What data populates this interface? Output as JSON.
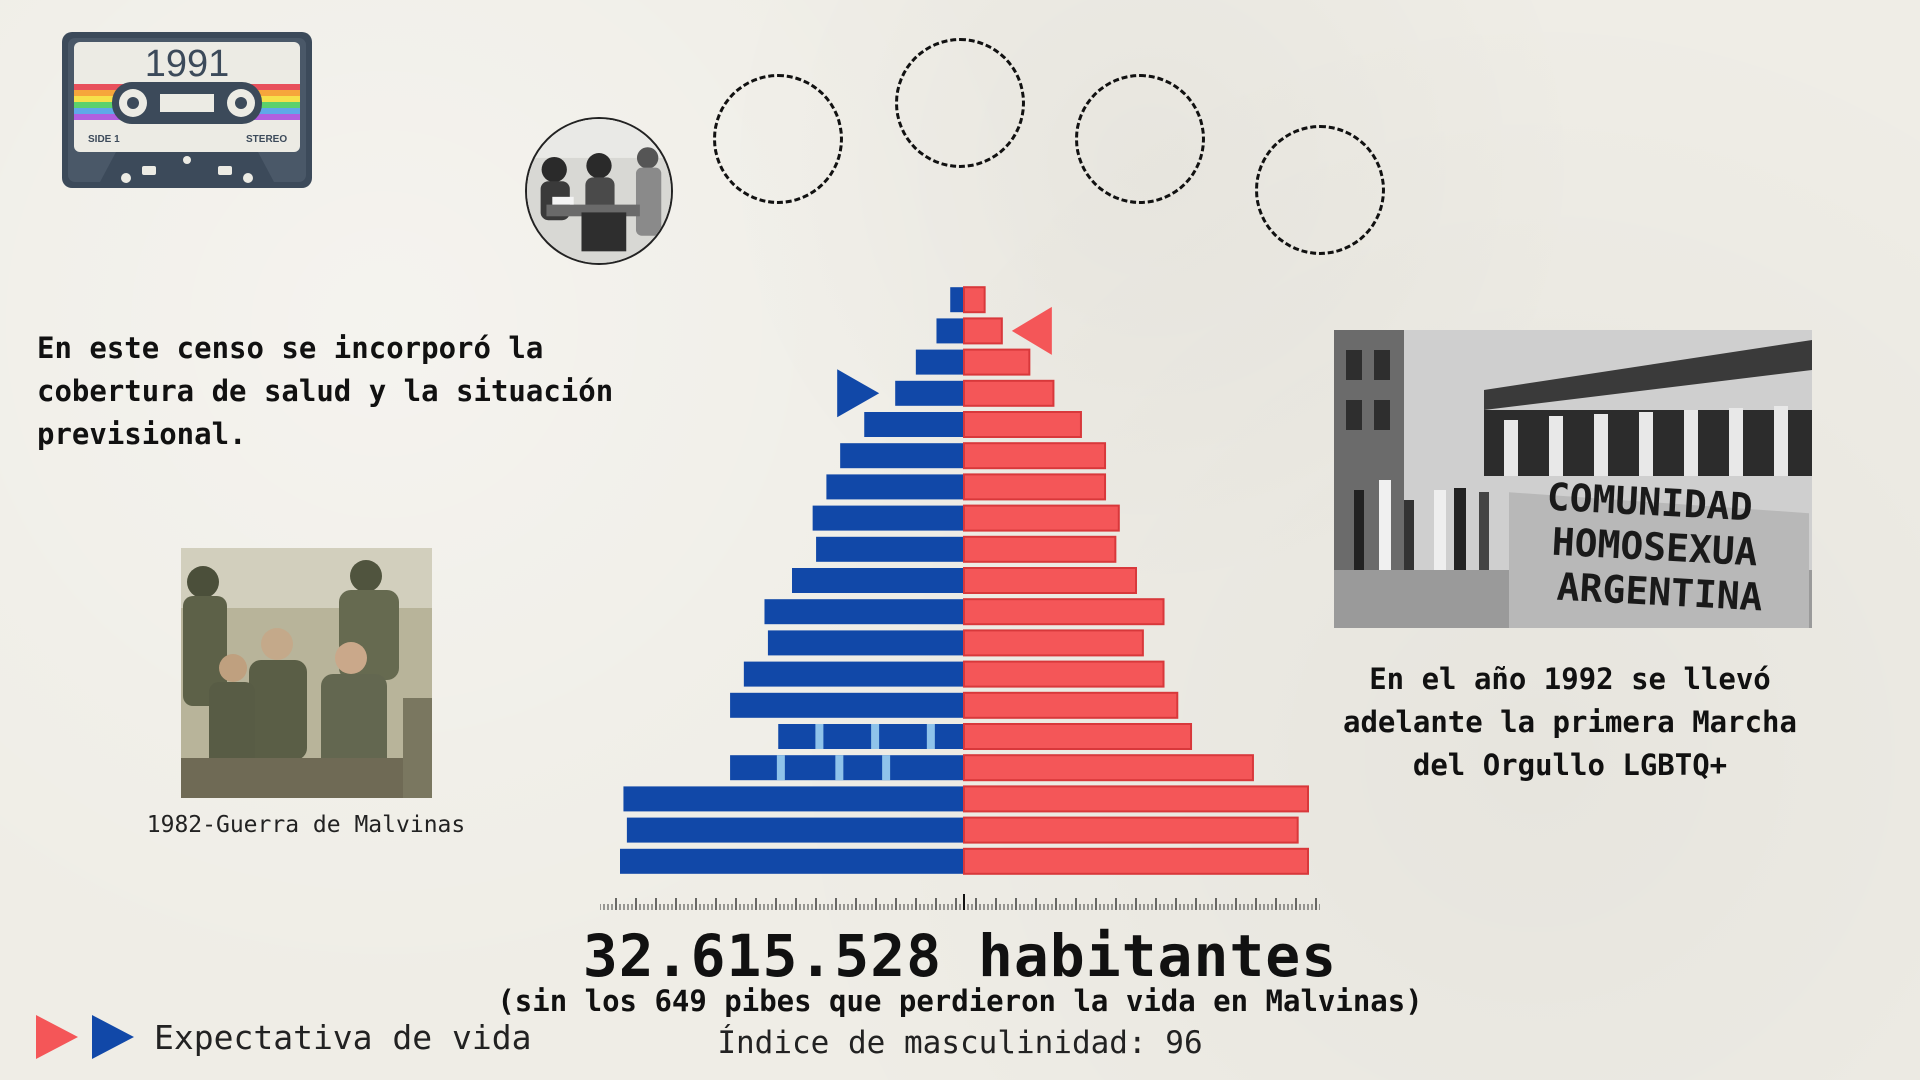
{
  "cassette": {
    "year": "1991",
    "side_label": "SIDE 1",
    "stereo_label": "STEREO"
  },
  "notes": {
    "census": "En este censo se incorporó la\ncobertura de salud y la situación\nprevisional.",
    "march": "En el año 1992 se llevó\nadelante la primera Marcha\ndel Orgullo LGBTQ+"
  },
  "captions": {
    "soldiers": "1982-Guerra de Malvinas"
  },
  "march_banner": [
    "COMUNIDAD",
    "HOMOSEXUA",
    "ARGENTINA"
  ],
  "chart_data": {
    "type": "bar",
    "orientation": "population-pyramid",
    "note": "Age groups ordered from youngest (bottom) to oldest (top); values are relative bar lengths read from the figure (max = 100).",
    "series": [
      {
        "name": "",
        "color": "#1148a8",
        "values": [
          100,
          98,
          99,
          68,
          54,
          68,
          64,
          57,
          58,
          50,
          43,
          44,
          40,
          36,
          29,
          20,
          14,
          8,
          4
        ]
      },
      {
        "name": "",
        "color": "#f45658",
        "values": [
          100,
          97,
          100,
          84,
          66,
          62,
          58,
          52,
          58,
          50,
          44,
          45,
          41,
          41,
          34,
          26,
          19,
          11,
          6
        ]
      }
    ],
    "life_expectancy_markers": [
      {
        "series": "female",
        "color": "#f45658",
        "row_from_top": 2
      },
      {
        "series": "male",
        "color": "#1148a8",
        "row_from_top": 4
      }
    ]
  },
  "stats": {
    "total": "32.615.528 habitantes",
    "total_note": "(sin los 649 pibes que perdieron la vida en Malvinas)",
    "masculinity": "Índice de masculinidad: 96"
  },
  "legend": {
    "label": "Expectativa de vida",
    "colors": [
      "#f45658",
      "#1148a8"
    ]
  }
}
